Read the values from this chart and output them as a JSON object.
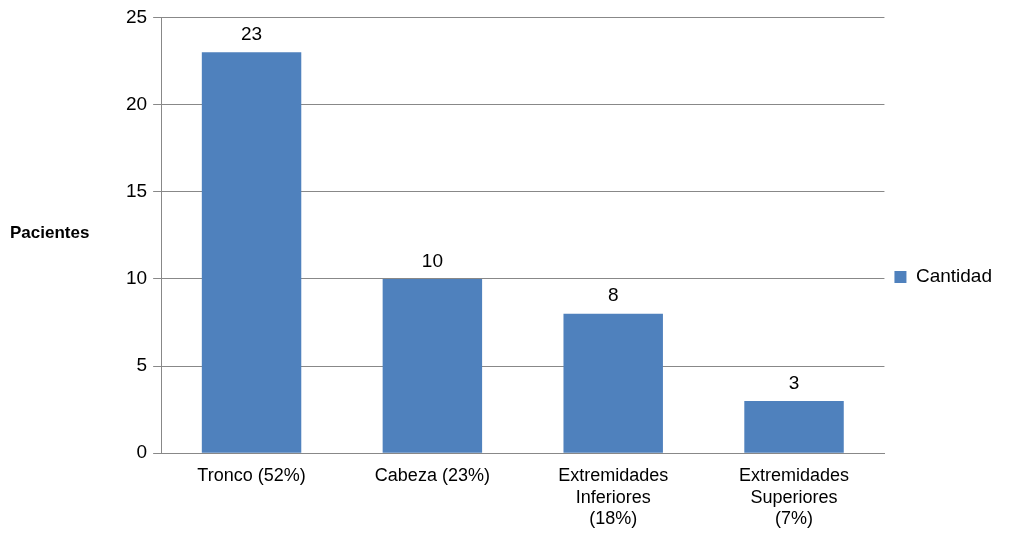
{
  "chart_data": {
    "type": "bar",
    "ylabel": "Pacientes",
    "categories": [
      "Tronco (52%)",
      "Cabeza (23%)",
      "Extremidades Inferiores (18%)",
      "Extremidades Superiores (7%)"
    ],
    "series": [
      {
        "name": "Cantidad",
        "color": "#4f81bd",
        "values": [
          23,
          10,
          8,
          3
        ]
      }
    ],
    "ylim": [
      0,
      25
    ],
    "yticks": [
      0,
      5,
      10,
      15,
      20,
      25
    ],
    "grid": "y",
    "legend": "right",
    "data_labels": true
  }
}
